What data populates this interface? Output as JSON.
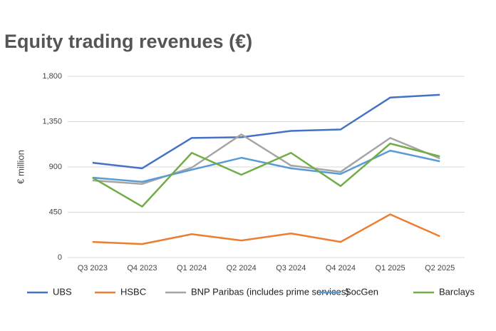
{
  "chart_data": {
    "type": "line",
    "title": "Equity trading revenues (€)",
    "y_label": "€ million",
    "categories": [
      "Q3 2023",
      "Q4 2023",
      "Q1 2024",
      "Q2 2024",
      "Q3 2024",
      "Q4 2024",
      "Q1 2025",
      "Q2 2025"
    ],
    "series": [
      {
        "name": "UBS",
        "color": "#4472c4",
        "values": [
          942,
          886,
          1188,
          1195,
          1258,
          1272,
          1589,
          1617
        ]
      },
      {
        "name": "HSBC",
        "color": "#ed7d31",
        "values": [
          155,
          134,
          232,
          169,
          239,
          155,
          429,
          211
        ]
      },
      {
        "name": "BNP Paribas (includes prime services)",
        "color": "#a5a5a5",
        "values": [
          766,
          731,
          893,
          1223,
          914,
          851,
          1188,
          984
        ]
      },
      {
        "name": "SocGen",
        "color": "#5b9bd5",
        "values": [
          794,
          752,
          872,
          991,
          886,
          830,
          1062,
          956
        ]
      },
      {
        "name": "Barclays",
        "color": "#70ad47",
        "values": [
          794,
          506,
          1040,
          822,
          1040,
          710,
          1132,
          1005
        ]
      }
    ],
    "ylim": [
      0,
      1800
    ],
    "yticks": [
      0,
      450,
      900,
      {
        "value": 1350,
        "label": "1,350"
      },
      {
        "value": 1800,
        "label": "1,800"
      }
    ],
    "grid": true
  }
}
